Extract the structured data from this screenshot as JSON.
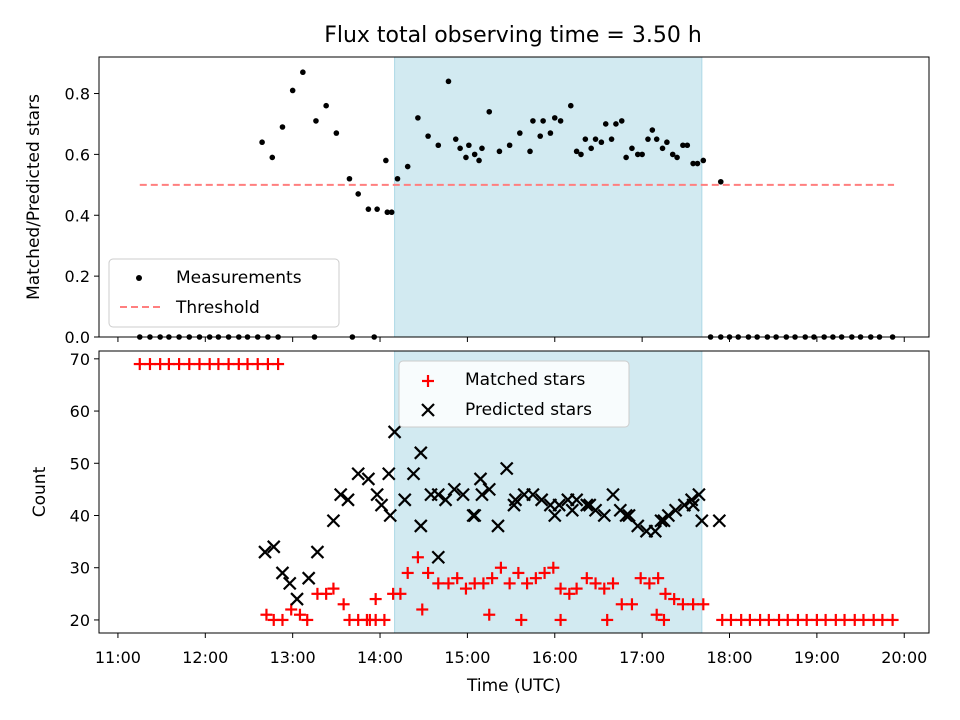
{
  "chart_data": [
    {
      "type": "scatter",
      "title": "Flux total observing time = 3.50 h",
      "ylabel": "Matched/Predicted stars",
      "xlim": [
        "10:47",
        "20:17"
      ],
      "ylim": [
        0,
        0.92
      ],
      "yticks": [
        "0.0",
        "0.2",
        "0.4",
        "0.6",
        "0.8"
      ],
      "legend_position": "lower-left",
      "shaded_interval": {
        "x": [
          "14:10",
          "17:41"
        ],
        "color": "#add8e6"
      },
      "threshold": {
        "name": "Threshold",
        "y": 0.5,
        "x": [
          "11:15",
          "19:53"
        ],
        "color": "#ff7f7f"
      },
      "series": [
        {
          "name": "Measurements",
          "marker": "dot",
          "color": "#000000",
          "x": [
            "11:15",
            "11:22",
            "11:29",
            "11:35",
            "11:42",
            "11:49",
            "11:56",
            "12:03",
            "12:09",
            "12:16",
            "12:23",
            "12:29",
            "12:36",
            "12:43",
            "12:50",
            "12:39",
            "12:46",
            "12:53",
            "13:00",
            "13:07",
            "13:16",
            "13:23",
            "13:30",
            "13:39",
            "13:45",
            "13:52",
            "13:58",
            "14:05",
            "13:15",
            "13:41",
            "13:56",
            "14:08",
            "14:04",
            "14:12",
            "14:19",
            "14:26",
            "14:33",
            "14:40",
            "14:47",
            "14:55",
            "15:01",
            "15:08",
            "15:15",
            "15:22",
            "15:29",
            "15:36",
            "15:43",
            "15:50",
            "15:57",
            "16:04",
            "16:11",
            "16:18",
            "16:25",
            "16:32",
            "16:39",
            "16:46",
            "16:53",
            "17:00",
            "17:07",
            "17:14",
            "17:21",
            "17:28",
            "17:35",
            "17:42",
            "14:52",
            "14:59",
            "15:05",
            "15:10",
            "15:45",
            "15:52",
            "16:00",
            "16:15",
            "16:21",
            "16:28",
            "16:35",
            "16:42",
            "16:49",
            "16:57",
            "17:04",
            "17:10",
            "17:17",
            "17:24",
            "17:31",
            "17:38",
            "17:54",
            "17:47",
            "17:54",
            "18:00",
            "18:06",
            "18:13",
            "18:19",
            "18:26",
            "18:32",
            "18:39",
            "18:45",
            "18:52",
            "18:58",
            "19:05",
            "19:11",
            "19:17",
            "19:24",
            "19:30",
            "19:37",
            "19:43",
            "19:52"
          ],
          "y": [
            0,
            0,
            0,
            0,
            0,
            0,
            0,
            0,
            0,
            0,
            0,
            0,
            0,
            0,
            0,
            0.64,
            0.59,
            0.69,
            0.81,
            0.87,
            0.71,
            0.76,
            0.67,
            0.52,
            0.47,
            0.42,
            0.42,
            0.41,
            0,
            0,
            0,
            0.41,
            0.58,
            0.52,
            0.56,
            0.72,
            0.66,
            0.63,
            0.84,
            0.62,
            0.63,
            0.58,
            0.74,
            0.61,
            0.63,
            0.67,
            0.61,
            0.66,
            0.67,
            0.71,
            0.76,
            0.6,
            0.62,
            0.64,
            0.65,
            0.71,
            0.62,
            0.6,
            0.68,
            0.62,
            0.6,
            0.63,
            0.57,
            0.58,
            0.65,
            0.59,
            0.6,
            0.62,
            0.71,
            0.71,
            0.72,
            0.61,
            0.65,
            0.65,
            0.7,
            0.7,
            0.59,
            0.6,
            0.65,
            0.65,
            0.64,
            0.59,
            0.63,
            0.57,
            0.51,
            0,
            0,
            0,
            0,
            0,
            0,
            0,
            0,
            0,
            0,
            0,
            0,
            0,
            0,
            0,
            0,
            0,
            0,
            0,
            0
          ]
        }
      ]
    },
    {
      "type": "scatter",
      "xlabel": "Time (UTC)",
      "ylabel": "Count",
      "xlim": [
        "10:47",
        "20:17"
      ],
      "ylim": [
        17.5,
        71.5
      ],
      "yticks": [
        "20",
        "30",
        "40",
        "50",
        "60",
        "70"
      ],
      "xticks": [
        "11:00",
        "12:00",
        "13:00",
        "14:00",
        "15:00",
        "16:00",
        "17:00",
        "18:00",
        "19:00",
        "20:00"
      ],
      "legend_position": "upper-center",
      "shaded_interval": {
        "x": [
          "14:10",
          "17:41"
        ],
        "color": "#add8e6"
      },
      "series": [
        {
          "name": "Matched stars",
          "marker": "plus",
          "color": "#ff0000",
          "x": [
            "11:15",
            "11:22",
            "11:29",
            "11:35",
            "11:42",
            "11:49",
            "11:56",
            "12:03",
            "12:09",
            "12:16",
            "12:23",
            "12:29",
            "12:36",
            "12:43",
            "12:50",
            "12:42",
            "12:47",
            "12:53",
            "12:59",
            "13:05",
            "13:10",
            "13:17",
            "13:23",
            "13:28",
            "13:35",
            "13:39",
            "13:45",
            "13:51",
            "13:57",
            "14:03",
            "13:57",
            "14:09",
            "14:14",
            "14:19",
            "14:26",
            "14:33",
            "14:40",
            "14:47",
            "14:53",
            "14:59",
            "15:05",
            "15:11",
            "15:17",
            "15:23",
            "15:29",
            "15:35",
            "15:41",
            "15:47",
            "15:53",
            "15:59",
            "16:04",
            "16:10",
            "16:15",
            "16:22",
            "16:28",
            "16:34",
            "16:40",
            "16:46",
            "16:53",
            "16:59",
            "17:05",
            "17:11",
            "17:16",
            "17:22",
            "17:28",
            "17:35",
            "17:42",
            "17:55",
            "18:01",
            "18:08",
            "18:14",
            "18:21",
            "18:27",
            "18:34",
            "18:40",
            "18:47",
            "18:53",
            "19:00",
            "19:06",
            "19:13",
            "19:19",
            "19:26",
            "19:32",
            "19:39",
            "19:45",
            "19:52",
            "13:53",
            "14:29",
            "15:15",
            "15:37",
            "16:04",
            "16:36",
            "17:10",
            "17:15"
          ],
          "y": [
            69,
            69,
            69,
            69,
            69,
            69,
            69,
            69,
            69,
            69,
            69,
            69,
            69,
            69,
            69,
            21,
            20,
            20,
            22,
            21,
            20,
            25,
            25,
            26,
            23,
            20,
            20,
            20,
            20,
            20,
            24,
            25,
            25,
            29,
            32,
            29,
            27,
            27,
            28,
            26,
            27,
            27,
            28,
            30,
            27,
            29,
            27,
            28,
            29,
            30,
            26,
            25,
            26,
            28,
            27,
            26,
            27,
            23,
            23,
            28,
            27,
            28,
            25,
            24,
            23,
            23,
            23,
            20,
            20,
            20,
            20,
            20,
            20,
            20,
            20,
            20,
            20,
            20,
            20,
            20,
            20,
            20,
            20,
            20,
            20,
            20,
            20,
            22,
            21,
            20,
            20,
            20,
            21,
            20
          ]
        },
        {
          "name": "Predicted stars",
          "marker": "x",
          "color": "#000000",
          "x": [
            "12:41",
            "12:47",
            "12:53",
            "12:58",
            "13:03",
            "13:11",
            "13:17",
            "13:28",
            "13:33",
            "13:38",
            "13:45",
            "13:52",
            "13:58",
            "14:06",
            "14:10",
            "14:17",
            "14:23",
            "14:28",
            "14:35",
            "14:40",
            "14:45",
            "14:51",
            "14:57",
            "15:04",
            "15:09",
            "15:15",
            "15:21",
            "15:27",
            "15:33",
            "15:39",
            "15:45",
            "15:51",
            "15:57",
            "16:03",
            "16:09",
            "16:15",
            "16:22",
            "16:28",
            "16:34",
            "16:40",
            "16:45",
            "16:51",
            "16:57",
            "17:03",
            "17:09",
            "17:13",
            "17:18",
            "17:23",
            "17:29",
            "17:35",
            "17:41",
            "17:53",
            "14:01",
            "14:07",
            "14:28",
            "15:05",
            "15:32",
            "16:00",
            "16:12",
            "16:24",
            "16:49",
            "17:15",
            "17:34",
            "17:39",
            "14:40",
            "15:10"
          ],
          "y": [
            33,
            34,
            29,
            27,
            24,
            28,
            33,
            39,
            44,
            43,
            48,
            47,
            44,
            48,
            56,
            43,
            48,
            52,
            44,
            44,
            43,
            45,
            44,
            40,
            47,
            45,
            38,
            49,
            43,
            44,
            44,
            43,
            42,
            42,
            43,
            43,
            42,
            41,
            40,
            44,
            41,
            40,
            38,
            37,
            37,
            39,
            40,
            41,
            42,
            42,
            39,
            39,
            42,
            40,
            38,
            40,
            42,
            40,
            41,
            42,
            40,
            39,
            43,
            44,
            32,
            44
          ]
        }
      ]
    }
  ]
}
